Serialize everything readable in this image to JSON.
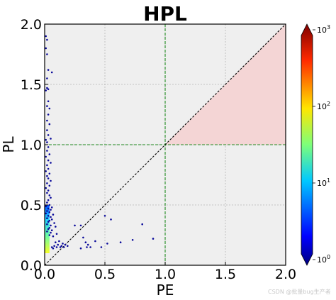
{
  "chart_data": {
    "type": "scatter",
    "title": "HPL",
    "xlabel": "PE",
    "ylabel": "PL",
    "xlim": [
      0,
      2
    ],
    "ylim": [
      0,
      2
    ],
    "xticks": [
      "0.0",
      "0.5",
      "1.0",
      "1.5",
      "2.0"
    ],
    "yticks": [
      "0.0",
      "0.5",
      "1.0",
      "1.5",
      "2.0"
    ],
    "grid": true,
    "reference_lines": {
      "diagonal": "y = x",
      "vertical_x": 1.0,
      "horizontal_y": 1.0
    },
    "shaded_region": {
      "x_from": 1.0,
      "x_to": 2.0,
      "description": "x >= 1, y >= 1, y <= x",
      "color": "#f4d5d5"
    },
    "colorbar": {
      "scale": "log",
      "range": [
        1,
        1000
      ],
      "ticks": [
        {
          "base": "10",
          "exp": "0"
        },
        {
          "base": "10",
          "exp": "1"
        },
        {
          "base": "10",
          "exp": "2"
        },
        {
          "base": "10",
          "exp": "3"
        }
      ],
      "colormap": "jet"
    },
    "points": [
      [
        0.01,
        1.9
      ],
      [
        0.02,
        1.87
      ],
      [
        0.01,
        1.8
      ],
      [
        0.02,
        1.75
      ],
      [
        0.03,
        1.62
      ],
      [
        0.06,
        1.6
      ],
      [
        0.02,
        1.55
      ],
      [
        0.02,
        1.47
      ],
      [
        0.03,
        1.46
      ],
      [
        0.01,
        1.45
      ],
      [
        0.03,
        1.36
      ],
      [
        0.02,
        1.32
      ],
      [
        0.04,
        1.3
      ],
      [
        0.03,
        1.25
      ],
      [
        0.02,
        1.2
      ],
      [
        0.04,
        1.17
      ],
      [
        0.02,
        1.12
      ],
      [
        0.03,
        1.08
      ],
      [
        0.05,
        1.05
      ],
      [
        0.01,
        1.04
      ],
      [
        0.02,
        1.02
      ],
      [
        0.03,
        0.98
      ],
      [
        0.02,
        0.95
      ],
      [
        0.04,
        0.92
      ],
      [
        0.01,
        0.9
      ],
      [
        0.03,
        0.87
      ],
      [
        0.05,
        0.85
      ],
      [
        0.02,
        0.83
      ],
      [
        0.03,
        0.8
      ],
      [
        0.01,
        0.78
      ],
      [
        0.04,
        0.76
      ],
      [
        0.02,
        0.74
      ],
      [
        0.03,
        0.72
      ],
      [
        0.05,
        0.7
      ],
      [
        0.02,
        0.68
      ],
      [
        0.04,
        0.66
      ],
      [
        0.01,
        0.64
      ],
      [
        0.03,
        0.62
      ],
      [
        0.02,
        0.6
      ],
      [
        0.04,
        0.58
      ],
      [
        0.05,
        0.56
      ],
      [
        0.03,
        0.54
      ],
      [
        0.02,
        0.52
      ],
      [
        0.04,
        0.5
      ],
      [
        0.01,
        0.49
      ],
      [
        0.06,
        0.48
      ],
      [
        0.03,
        0.47
      ],
      [
        0.05,
        0.46
      ],
      [
        0.02,
        0.45
      ],
      [
        0.04,
        0.44
      ],
      [
        0.01,
        0.43
      ],
      [
        0.07,
        0.42
      ],
      [
        0.03,
        0.41
      ],
      [
        0.05,
        0.4
      ],
      [
        0.02,
        0.39
      ],
      [
        0.06,
        0.38
      ],
      [
        0.04,
        0.37
      ],
      [
        0.03,
        0.36
      ],
      [
        0.08,
        0.35
      ],
      [
        0.02,
        0.34
      ],
      [
        0.05,
        0.33
      ],
      [
        0.09,
        0.32
      ],
      [
        0.04,
        0.31
      ],
      [
        0.03,
        0.3
      ],
      [
        0.06,
        0.29
      ],
      [
        0.02,
        0.28
      ],
      [
        0.05,
        0.27
      ],
      [
        0.1,
        0.26
      ],
      [
        0.04,
        0.25
      ],
      [
        0.07,
        0.24
      ],
      [
        0.12,
        0.2
      ],
      [
        0.09,
        0.19
      ],
      [
        0.15,
        0.18
      ],
      [
        0.11,
        0.17
      ],
      [
        0.08,
        0.16
      ],
      [
        0.14,
        0.16
      ],
      [
        0.17,
        0.17
      ],
      [
        0.06,
        0.15
      ],
      [
        0.1,
        0.15
      ],
      [
        0.13,
        0.15
      ],
      [
        0.16,
        0.15
      ],
      [
        0.19,
        0.16
      ],
      [
        0.07,
        0.14
      ],
      [
        0.25,
        0.33
      ],
      [
        0.3,
        0.33
      ],
      [
        0.5,
        0.41
      ],
      [
        0.55,
        0.38
      ],
      [
        0.32,
        0.23
      ],
      [
        0.34,
        0.19
      ],
      [
        0.36,
        0.17
      ],
      [
        0.42,
        0.2
      ],
      [
        0.47,
        0.15
      ],
      [
        0.52,
        0.18
      ],
      [
        0.63,
        0.19
      ],
      [
        0.73,
        0.21
      ],
      [
        0.81,
        0.34
      ],
      [
        0.9,
        0.22
      ],
      [
        0.35,
        0.15
      ],
      [
        0.38,
        0.15
      ],
      [
        0.3,
        0.14
      ]
    ],
    "density_band": {
      "x_from": 0.0,
      "x_to": 0.04,
      "y_from": 0.1,
      "y_to": 0.5,
      "max_color": "#c6ff3a"
    }
  },
  "watermark": "CSDN @批量bug生产者"
}
